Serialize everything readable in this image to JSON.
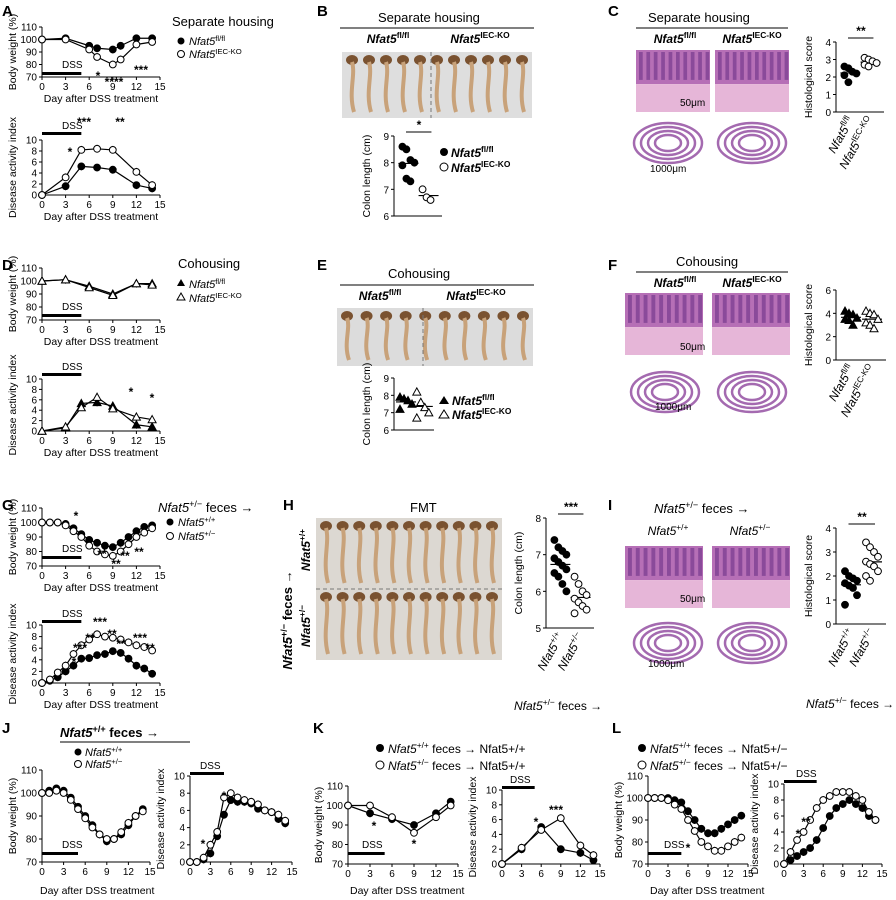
{
  "figure": {
    "panels": [
      {
        "letter": "A",
        "heading": "Separate housing",
        "legend": [
          "Nfat5fl/fl",
          "Nfat5IEC-KO"
        ]
      },
      {
        "letter": "B",
        "heading": "Separate housing",
        "groups": [
          "Nfat5fl/fl",
          "Nfat5IEC-KO"
        ]
      },
      {
        "letter": "C",
        "heading": "Separate housing",
        "groups": [
          "Nfat5fl/fl",
          "Nfat5IEC-KO"
        ]
      },
      {
        "letter": "D",
        "heading": "Cohousing",
        "legend": [
          "Nfat5fl/fl",
          "Nfat5IEC-KO"
        ]
      },
      {
        "letter": "E",
        "heading": "Cohousing",
        "groups": [
          "Nfat5fl/fl",
          "Nfat5IEC-KO"
        ]
      },
      {
        "letter": "F",
        "heading": "Cohousing",
        "groups": [
          "Nfat5fl/fl",
          "Nfat5IEC-KO"
        ]
      },
      {
        "letter": "G",
        "heading": "Nfat5+/− feces →",
        "legend": [
          "Nfat5+/+",
          "Nfat5+/−"
        ]
      },
      {
        "letter": "H",
        "heading": "FMT",
        "groups": [
          "Nfat5+/+",
          "Nfat5+/−"
        ],
        "side_label": "Nfat5+/− feces →",
        "footer": "Nfat5+/− feces →"
      },
      {
        "letter": "I",
        "heading": "Nfat5+/− feces →",
        "groups": [
          "Nfat5+/+",
          "Nfat5+/−"
        ],
        "footer": "Nfat5+/− feces →"
      },
      {
        "letter": "J",
        "heading": "Nfat5+/+ feces →",
        "legend": [
          "Nfat5+/+",
          "Nfat5+/−"
        ]
      },
      {
        "letter": "K",
        "legend": [
          "Nfat5+/+ feces → Nfat5+/+",
          "Nfat5+/− feces → Nfat5+/+"
        ]
      },
      {
        "letter": "L",
        "legend": [
          "Nfat5+/+ feces → Nfat5+/−",
          "Nfat5+/− feces → Nfat5+/−"
        ]
      }
    ],
    "labels": {
      "bw": "Body weight (%)",
      "dai": "Disease activity index",
      "day": "Day after DSS treatment",
      "cl": "Colon length (cm)",
      "hs": "Histological score",
      "dss": "DSS",
      "s50": "50μm",
      "s1000": "1000μm"
    }
  },
  "chart_data": [
    {
      "id": "A1",
      "type": "line",
      "x": [
        0,
        3,
        6,
        7,
        9,
        10,
        12,
        14
      ],
      "ylim": [
        70,
        110
      ],
      "ylabel": "Body weight (%)",
      "series": [
        {
          "values": [
            100,
            101,
            95,
            93,
            92,
            95,
            101,
            101
          ]
        },
        {
          "values": [
            100,
            100,
            92,
            86,
            80,
            84,
            96,
            98
          ]
        }
      ],
      "annotations": [
        "*",
        "****",
        "***"
      ]
    },
    {
      "id": "A2",
      "type": "line",
      "x": [
        0,
        3,
        5,
        7,
        9,
        12,
        14
      ],
      "ylim": [
        0,
        10
      ],
      "ylabel": "Disease activity index",
      "series": [
        {
          "values": [
            0,
            1.6,
            5.2,
            5.0,
            4.6,
            1.8,
            1.2
          ]
        },
        {
          "values": [
            0,
            3.2,
            8.2,
            8.4,
            8.2,
            4.2,
            1.8
          ]
        }
      ],
      "annotations": [
        "*",
        "***",
        "**"
      ]
    },
    {
      "id": "B",
      "type": "scatter",
      "ylim": [
        6,
        9
      ],
      "ylabel": "Colon length (cm)",
      "groups": [
        {
          "values": [
            8.6,
            8.5,
            8.1,
            8.0,
            7.9,
            7.4,
            7.3
          ]
        },
        {
          "values": [
            7.0,
            6.7,
            6.6
          ]
        }
      ],
      "annotations": [
        "*"
      ]
    },
    {
      "id": "C",
      "type": "scatter",
      "ylim": [
        0,
        4
      ],
      "ylabel": "Histological score",
      "groups": [
        {
          "values": [
            2.6,
            2.5,
            2.3,
            2.2,
            2.1,
            1.7
          ]
        },
        {
          "values": [
            3.1,
            3.0,
            2.9,
            2.8,
            2.7,
            2.6
          ]
        }
      ],
      "annotations": [
        "**"
      ]
    },
    {
      "id": "D1",
      "type": "line",
      "x": [
        0,
        3,
        6,
        9,
        12,
        14
      ],
      "ylim": [
        70,
        110
      ],
      "series": [
        {
          "values": [
            100,
            101,
            96,
            90,
            98,
            98
          ]
        },
        {
          "values": [
            100,
            101,
            95,
            89,
            98,
            97
          ]
        }
      ]
    },
    {
      "id": "D2",
      "type": "line",
      "x": [
        0,
        3,
        5,
        7,
        9,
        12,
        14
      ],
      "ylim": [
        0,
        10
      ],
      "series": [
        {
          "values": [
            0,
            0.6,
            5.3,
            5.5,
            4.8,
            1.2,
            0.8
          ]
        },
        {
          "values": [
            0,
            0.8,
            4.5,
            6.5,
            4.3,
            2.7,
            2.2
          ]
        }
      ],
      "annotations": [
        "*",
        "*"
      ]
    },
    {
      "id": "E",
      "type": "scatter",
      "ylim": [
        6,
        9
      ],
      "groups": [
        {
          "values": [
            7.9,
            7.8,
            7.7,
            7.5,
            7.2
          ]
        },
        {
          "values": [
            8.2,
            7.6,
            7.3,
            7.0,
            6.7
          ]
        }
      ]
    },
    {
      "id": "F",
      "type": "scatter",
      "ylim": [
        0,
        6
      ],
      "groups": [
        {
          "values": [
            4.2,
            4.0,
            3.9,
            3.6,
            3.5,
            3.4,
            3.0
          ]
        },
        {
          "values": [
            4.2,
            4.0,
            3.9,
            3.5,
            3.2,
            3.0,
            2.7
          ]
        }
      ]
    },
    {
      "id": "G1",
      "type": "line",
      "x": [
        0,
        1,
        2,
        3,
        4,
        5,
        6,
        7,
        8,
        9,
        10,
        11,
        12,
        13,
        14
      ],
      "ylim": [
        70,
        110
      ],
      "series": [
        {
          "values": [
            100,
            100,
            100,
            99,
            96,
            92,
            88,
            86,
            84,
            83,
            86,
            90,
            94,
            97,
            98
          ]
        },
        {
          "values": [
            100,
            100,
            100,
            98,
            94,
            90,
            84,
            80,
            78,
            77,
            80,
            85,
            90,
            93,
            96
          ]
        }
      ],
      "annotations": [
        "*",
        "**",
        "**",
        "**",
        "**"
      ]
    },
    {
      "id": "G2",
      "type": "line",
      "x": [
        0,
        1,
        2,
        3,
        4,
        5,
        6,
        7,
        8,
        9,
        10,
        11,
        12,
        13,
        14
      ],
      "ylim": [
        0,
        10
      ],
      "series": [
        {
          "values": [
            0,
            0.4,
            1.0,
            2.0,
            3.0,
            4.2,
            4.3,
            4.8,
            5.0,
            5.5,
            5.2,
            4.2,
            3.0,
            2.5,
            1.6
          ]
        },
        {
          "values": [
            0,
            0.6,
            1.8,
            3.0,
            5.0,
            6.5,
            7.5,
            8.4,
            8.0,
            7.8,
            7.5,
            7.0,
            6.5,
            6.2,
            5.6
          ]
        }
      ],
      "annotations": [
        "*",
        "***",
        "**",
        "***",
        "**",
        "**",
        "***",
        "**"
      ]
    },
    {
      "id": "H",
      "type": "scatter",
      "ylim": [
        5,
        8
      ],
      "ylabel": "Colon length (cm)",
      "groups": [
        {
          "values": [
            7.4,
            7.2,
            7.1,
            7.0,
            6.9,
            6.8,
            6.7,
            6.6,
            6.5,
            6.4,
            6.2,
            6.0
          ]
        },
        {
          "values": [
            6.4,
            6.2,
            6.0,
            5.9,
            5.8,
            5.7,
            5.6,
            5.5,
            5.4
          ]
        }
      ],
      "annotations": [
        "***"
      ]
    },
    {
      "id": "I",
      "type": "scatter",
      "ylim": [
        0,
        4
      ],
      "ylabel": "Histological score",
      "groups": [
        {
          "values": [
            2.2,
            2.0,
            1.9,
            1.8,
            1.7,
            1.6,
            1.5,
            1.2,
            0.8
          ]
        },
        {
          "values": [
            3.4,
            3.2,
            3.0,
            2.8,
            2.6,
            2.5,
            2.4,
            2.2,
            2.0,
            1.8
          ]
        }
      ],
      "annotations": [
        "**"
      ]
    },
    {
      "id": "J1",
      "type": "line",
      "x": [
        0,
        1,
        2,
        3,
        4,
        5,
        6,
        7,
        8,
        9,
        10,
        11,
        12,
        13,
        14
      ],
      "ylim": [
        70,
        110
      ],
      "series": [
        {
          "values": [
            100,
            101,
            102,
            101,
            98,
            94,
            90,
            86,
            82,
            79,
            80,
            82,
            86,
            90,
            93
          ]
        },
        {
          "values": [
            100,
            100,
            101,
            100,
            97,
            93,
            89,
            85,
            82,
            80,
            80,
            83,
            87,
            90,
            92
          ]
        }
      ]
    },
    {
      "id": "J2",
      "type": "line",
      "x": [
        0,
        1,
        2,
        3,
        4,
        5,
        6,
        7,
        8,
        9,
        10,
        11,
        12,
        13,
        14
      ],
      "ylim": [
        0,
        10
      ],
      "series": [
        {
          "values": [
            0,
            0,
            0.3,
            1.0,
            3.0,
            5.5,
            7.2,
            7.0,
            7.0,
            6.8,
            6.2,
            6.0,
            5.8,
            5.0,
            4.5
          ]
        },
        {
          "values": [
            0,
            0,
            0.5,
            2.0,
            3.5,
            7.5,
            8.0,
            7.5,
            7.2,
            7.0,
            6.7,
            6.0,
            5.8,
            5.5,
            4.8
          ]
        }
      ],
      "annotations": [
        "*",
        "*"
      ]
    },
    {
      "id": "K1",
      "type": "line",
      "x": [
        0,
        3,
        6,
        9,
        12,
        14
      ],
      "ylim": [
        70,
        110
      ],
      "series": [
        {
          "values": [
            100,
            96,
            93,
            90,
            96,
            102
          ]
        },
        {
          "values": [
            100,
            100,
            94,
            86,
            94,
            100
          ]
        }
      ],
      "annotations": [
        "*",
        "*"
      ]
    },
    {
      "id": "K2",
      "type": "line",
      "x": [
        0,
        3,
        6,
        9,
        12,
        14
      ],
      "ylim": [
        0,
        10
      ],
      "series": [
        {
          "values": [
            0,
            2.0,
            5.0,
            2.0,
            1.5,
            0.5
          ]
        },
        {
          "values": [
            0,
            2.2,
            4.6,
            6.2,
            2.5,
            1.2
          ]
        }
      ],
      "annotations": [
        "*",
        "***"
      ]
    },
    {
      "id": "L1",
      "type": "line",
      "x": [
        0,
        1,
        2,
        3,
        4,
        5,
        6,
        7,
        8,
        9,
        10,
        11,
        12,
        13,
        14
      ],
      "ylim": [
        70,
        110
      ],
      "series": [
        {
          "values": [
            100,
            100,
            100,
            100,
            99,
            98,
            94,
            90,
            86,
            84,
            84,
            86,
            88,
            90,
            92
          ]
        },
        {
          "values": [
            100,
            100,
            100,
            99,
            97,
            95,
            90,
            85,
            80,
            78,
            76,
            76,
            78,
            80,
            82
          ]
        }
      ],
      "annotations": [
        "*"
      ]
    },
    {
      "id": "L2",
      "type": "line",
      "x": [
        0,
        1,
        2,
        3,
        4,
        5,
        6,
        7,
        8,
        9,
        10,
        11,
        12,
        13,
        14
      ],
      "ylim": [
        0,
        10
      ],
      "series": [
        {
          "values": [
            0,
            0.5,
            1.0,
            1.5,
            2.0,
            3.0,
            4.5,
            6.0,
            7.0,
            7.5,
            8.0,
            7.5,
            7.0,
            6.0,
            5.5
          ]
        },
        {
          "values": [
            0,
            1.5,
            3.0,
            4.0,
            5.5,
            7.0,
            8.0,
            8.5,
            9.0,
            9.0,
            9.0,
            8.5,
            8.0,
            6.5,
            5.5
          ]
        }
      ],
      "annotations": [
        "*",
        "**"
      ]
    }
  ]
}
